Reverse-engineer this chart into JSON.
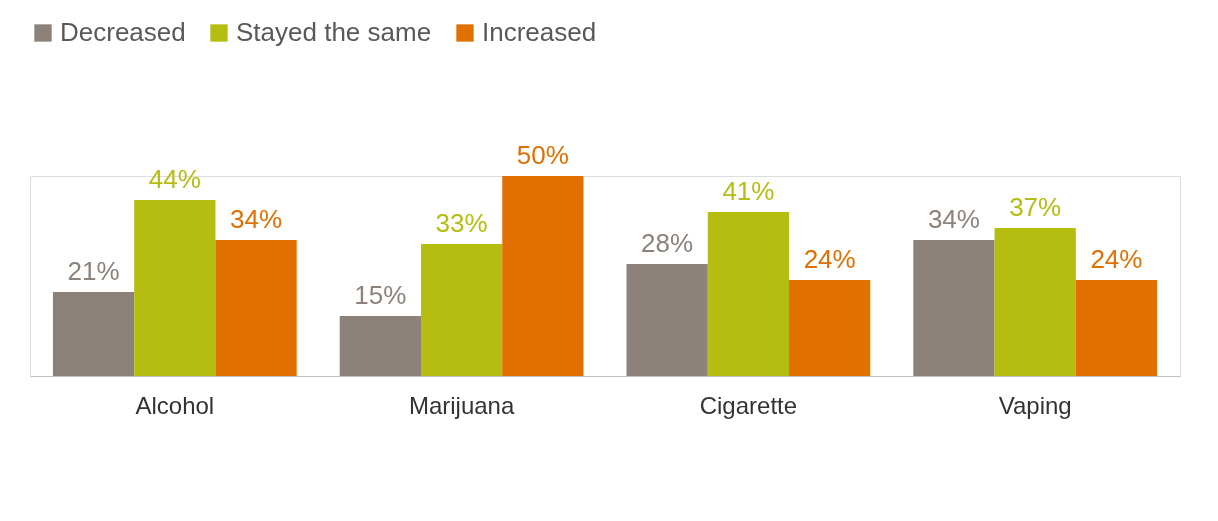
{
  "chart_data": {
    "type": "bar",
    "categories": [
      "Alcohol",
      "Marijuana",
      "Cigarette",
      "Vaping"
    ],
    "series": [
      {
        "name": "Decreased",
        "color": "#8c8279",
        "values": [
          21,
          15,
          28,
          34
        ],
        "value_labels": [
          "21%",
          "15%",
          "28%",
          "34%"
        ]
      },
      {
        "name": "Stayed the same",
        "color": "#b5bd10",
        "values": [
          44,
          33,
          41,
          37
        ],
        "value_labels": [
          "44%",
          "33%",
          "41%",
          "37%"
        ]
      },
      {
        "name": "Increased",
        "color": "#e07000",
        "values": [
          34,
          50,
          24,
          24
        ],
        "value_labels": [
          "34%",
          "50%",
          "24%",
          "24%"
        ]
      }
    ],
    "legend": "top",
    "grid": false
  }
}
